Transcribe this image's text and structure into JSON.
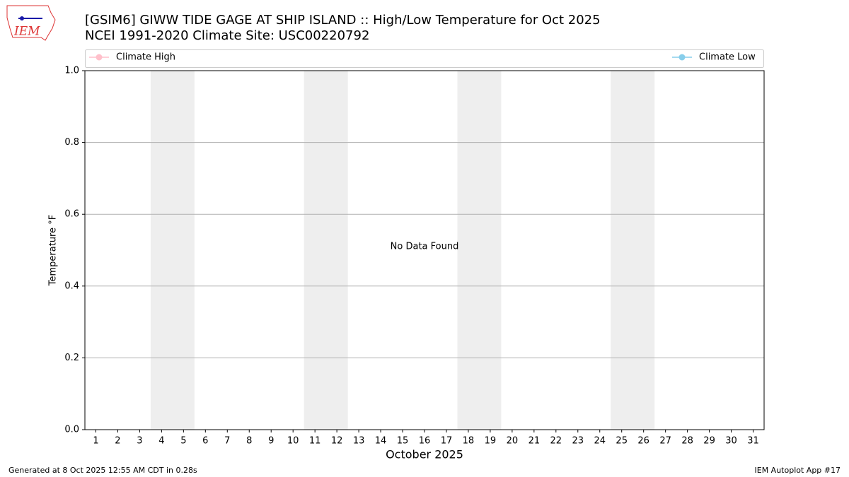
{
  "logo_text": "IEM",
  "chart_data": {
    "type": "line",
    "title": "[GSIM6] GIWW TIDE GAGE AT SHIP ISLAND :: High/Low Temperature for Oct 2025",
    "subtitle": "NCEI 1991-2020 Climate Site: USC00220792",
    "xlabel": "October 2025",
    "ylabel": "Temperature °F",
    "annotation": "No Data Found",
    "series": [
      {
        "name": "Climate High",
        "color": "#ffc0cb",
        "values": []
      },
      {
        "name": "Climate Low",
        "color": "#87ceeb",
        "values": []
      }
    ],
    "xlim": [
      0.5,
      31.5
    ],
    "xticks": [
      1,
      2,
      3,
      4,
      5,
      6,
      7,
      8,
      9,
      10,
      11,
      12,
      13,
      14,
      15,
      16,
      17,
      18,
      19,
      20,
      21,
      22,
      23,
      24,
      25,
      26,
      27,
      28,
      29,
      30,
      31
    ],
    "ylim": [
      0,
      1
    ],
    "yticks": [
      {
        "value": 0,
        "label": "0.0"
      },
      0.2,
      0.4,
      0.6,
      0.8,
      {
        "value": 1,
        "label": "1.0"
      }
    ],
    "shaded_spans": [
      [
        3.5,
        5.5
      ],
      [
        10.5,
        12.5
      ],
      [
        17.5,
        19.5
      ],
      [
        24.5,
        26.5
      ]
    ],
    "shade_color": "#eeeeee",
    "grid": true,
    "legend": "top"
  },
  "footer": {
    "left": "Generated at 8 Oct 2025 12:55 AM CDT in 0.28s",
    "right": "IEM Autoplot App #17"
  }
}
